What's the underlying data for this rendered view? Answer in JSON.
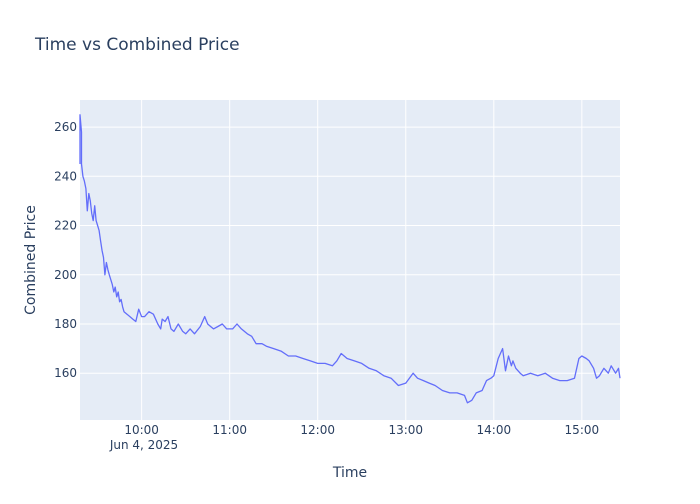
{
  "chart_data": {
    "type": "line",
    "title": "Time vs Combined Price",
    "xlabel": "Time",
    "ylabel": "Combined Price",
    "x_date_label": "Jun 4, 2025",
    "xlim": [
      "09:18",
      "15:26"
    ],
    "ylim": [
      141,
      271
    ],
    "x_ticks": [
      "10:00",
      "11:00",
      "12:00",
      "13:00",
      "14:00",
      "15:00"
    ],
    "y_ticks": [
      160,
      180,
      200,
      220,
      240,
      260
    ],
    "grid": true,
    "legend": "none",
    "colors": {
      "line": "#636efa",
      "plot_bg": "#e5ecf6",
      "grid": "#ffffff",
      "text": "#2a3f5f"
    },
    "series": [
      {
        "x": [
          "09:18",
          "09:18",
          "09:19",
          "09:19",
          "09:20",
          "09:21",
          "09:22",
          "09:23",
          "09:24",
          "09:25",
          "09:26",
          "09:27",
          "09:28",
          "09:29",
          "09:30",
          "09:31",
          "09:32",
          "09:33",
          "09:34",
          "09:35",
          "09:36",
          "09:37",
          "09:38",
          "09:39",
          "09:40",
          "09:41",
          "09:42",
          "09:43",
          "09:44",
          "09:45",
          "09:46",
          "09:47",
          "09:48",
          "09:50",
          "09:52",
          "09:54",
          "09:56",
          "09:58",
          "10:00",
          "10:02",
          "10:05",
          "10:08",
          "10:11",
          "10:13",
          "10:14",
          "10:16",
          "10:18",
          "10:20",
          "10:22",
          "10:25",
          "10:28",
          "10:30",
          "10:33",
          "10:36",
          "10:40",
          "10:43",
          "10:45",
          "10:47",
          "10:49",
          "10:52",
          "10:55",
          "10:58",
          "11:02",
          "11:05",
          "11:08",
          "11:12",
          "11:15",
          "11:18",
          "11:22",
          "11:25",
          "11:30",
          "11:35",
          "11:40",
          "11:45",
          "11:50",
          "11:55",
          "12:00",
          "12:05",
          "12:10",
          "12:13",
          "12:16",
          "12:20",
          "12:25",
          "12:30",
          "12:35",
          "12:40",
          "12:45",
          "12:50",
          "12:55",
          "13:00",
          "13:05",
          "13:08",
          "13:12",
          "13:16",
          "13:20",
          "13:25",
          "13:30",
          "13:35",
          "13:40",
          "13:42",
          "13:45",
          "13:48",
          "13:52",
          "13:55",
          "13:58",
          "14:00",
          "14:03",
          "14:06",
          "14:08",
          "14:10",
          "14:12",
          "14:13",
          "14:15",
          "14:18",
          "14:20",
          "14:25",
          "14:30",
          "14:35",
          "14:40",
          "14:45",
          "14:50",
          "14:55",
          "14:58",
          "15:00",
          "15:03",
          "15:05",
          "15:08",
          "15:10",
          "15:12",
          "15:15",
          "15:18",
          "15:20",
          "15:23",
          "15:25",
          "15:26"
        ],
        "y": [
          245,
          265,
          258,
          245,
          240,
          238,
          235,
          226,
          233,
          230,
          225,
          222,
          228,
          222,
          220,
          218,
          214,
          210,
          207,
          200,
          205,
          202,
          200,
          198,
          196,
          193,
          195,
          191,
          193,
          189,
          190,
          187,
          185,
          184,
          183,
          182,
          181,
          186,
          183,
          183,
          185,
          184,
          180,
          178,
          182,
          181,
          183,
          178,
          177,
          180,
          177,
          176,
          178,
          176,
          179,
          183,
          180,
          179,
          178,
          179,
          180,
          178,
          178,
          180,
          178,
          176,
          175,
          172,
          172,
          171,
          170,
          169,
          167,
          167,
          166,
          165,
          164,
          164,
          163,
          165,
          168,
          166,
          165,
          164,
          162,
          161,
          159,
          158,
          155,
          156,
          160,
          158,
          157,
          156,
          155,
          153,
          152,
          152,
          151,
          148,
          149,
          152,
          153,
          157,
          158,
          159,
          166,
          170,
          161,
          167,
          163,
          165,
          162,
          160,
          159,
          160,
          159,
          160,
          158,
          157,
          157,
          158,
          166,
          167,
          166,
          165,
          162,
          158,
          159,
          162,
          160,
          163,
          160,
          162,
          158
        ]
      }
    ]
  }
}
